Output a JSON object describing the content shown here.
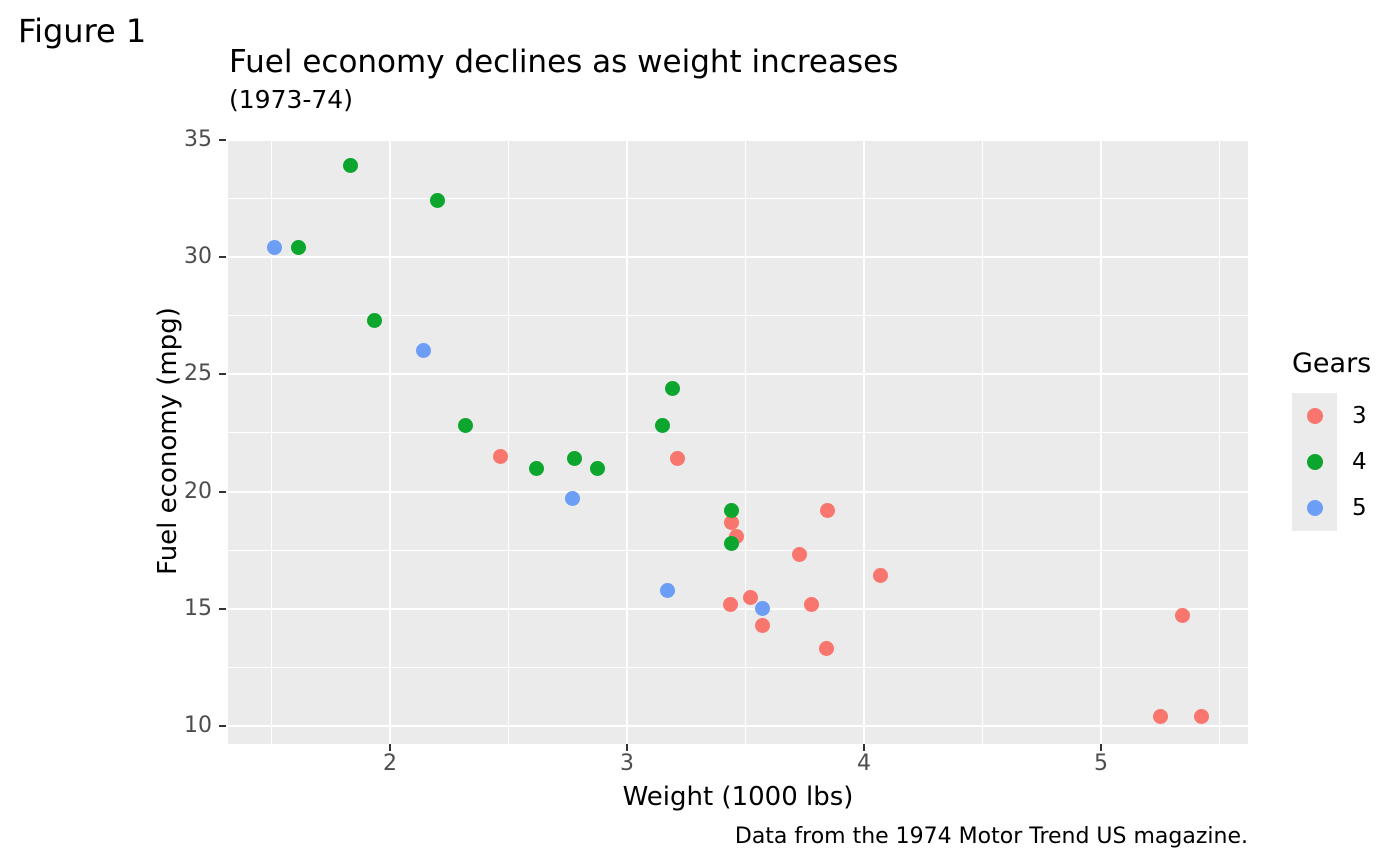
{
  "figure_tag": "Figure 1",
  "theme": {
    "panel_background": "#EBEBEB",
    "grid_color": "#FFFFFF",
    "tick_label_color": "#4D4D4D",
    "tick_mark_color": "#333333",
    "text_color": "#000000"
  },
  "chart_data": {
    "type": "scatter",
    "title": "Fuel economy declines as weight increases",
    "subtitle": "(1973-74)",
    "caption": "Data from the 1974 Motor Trend US magazine.",
    "xlabel": "Weight (1000 lbs)",
    "ylabel": "Fuel economy (mpg)",
    "xlim": [
      1.3165,
      5.6203
    ],
    "ylim": [
      9.23,
      35.043
    ],
    "x_ticks": [
      2,
      3,
      4,
      5
    ],
    "y_ticks": [
      10,
      15,
      20,
      25,
      30,
      35
    ],
    "x_minor_ticks": [
      1.5,
      2.5,
      3.5,
      4.5,
      5.5
    ],
    "y_minor_ticks": [
      12.5,
      17.5,
      22.5,
      27.5,
      32.5
    ],
    "grid": true,
    "legend": {
      "title": "Gears",
      "position": "right",
      "entries": [
        {
          "label": "3",
          "color": "#F8766D"
        },
        {
          "label": "4",
          "color": "#0CA62F"
        },
        {
          "label": "5",
          "color": "#6D9EF6"
        }
      ]
    },
    "points": [
      {
        "wt": 2.62,
        "mpg": 21.0,
        "gear": 4
      },
      {
        "wt": 2.875,
        "mpg": 21.0,
        "gear": 4
      },
      {
        "wt": 2.32,
        "mpg": 22.8,
        "gear": 4
      },
      {
        "wt": 3.215,
        "mpg": 21.4,
        "gear": 3
      },
      {
        "wt": 3.44,
        "mpg": 18.7,
        "gear": 3
      },
      {
        "wt": 3.46,
        "mpg": 18.1,
        "gear": 3
      },
      {
        "wt": 3.57,
        "mpg": 14.3,
        "gear": 3
      },
      {
        "wt": 3.19,
        "mpg": 24.4,
        "gear": 4
      },
      {
        "wt": 3.15,
        "mpg": 22.8,
        "gear": 4
      },
      {
        "wt": 3.44,
        "mpg": 19.2,
        "gear": 4
      },
      {
        "wt": 3.44,
        "mpg": 17.8,
        "gear": 4
      },
      {
        "wt": 4.07,
        "mpg": 16.4,
        "gear": 3
      },
      {
        "wt": 3.73,
        "mpg": 17.3,
        "gear": 3
      },
      {
        "wt": 3.78,
        "mpg": 15.2,
        "gear": 3
      },
      {
        "wt": 5.25,
        "mpg": 10.4,
        "gear": 3
      },
      {
        "wt": 5.424,
        "mpg": 10.4,
        "gear": 3
      },
      {
        "wt": 5.345,
        "mpg": 14.7,
        "gear": 3
      },
      {
        "wt": 2.2,
        "mpg": 32.4,
        "gear": 4
      },
      {
        "wt": 1.615,
        "mpg": 30.4,
        "gear": 4
      },
      {
        "wt": 1.835,
        "mpg": 33.9,
        "gear": 4
      },
      {
        "wt": 2.465,
        "mpg": 21.5,
        "gear": 3
      },
      {
        "wt": 3.52,
        "mpg": 15.5,
        "gear": 3
      },
      {
        "wt": 3.435,
        "mpg": 15.2,
        "gear": 3
      },
      {
        "wt": 3.84,
        "mpg": 13.3,
        "gear": 3
      },
      {
        "wt": 3.845,
        "mpg": 19.2,
        "gear": 3
      },
      {
        "wt": 1.935,
        "mpg": 27.3,
        "gear": 4
      },
      {
        "wt": 2.14,
        "mpg": 26.0,
        "gear": 5
      },
      {
        "wt": 1.513,
        "mpg": 30.4,
        "gear": 5
      },
      {
        "wt": 3.17,
        "mpg": 15.8,
        "gear": 5
      },
      {
        "wt": 2.77,
        "mpg": 19.7,
        "gear": 5
      },
      {
        "wt": 3.57,
        "mpg": 15.0,
        "gear": 5
      },
      {
        "wt": 2.78,
        "mpg": 21.4,
        "gear": 4
      }
    ]
  }
}
